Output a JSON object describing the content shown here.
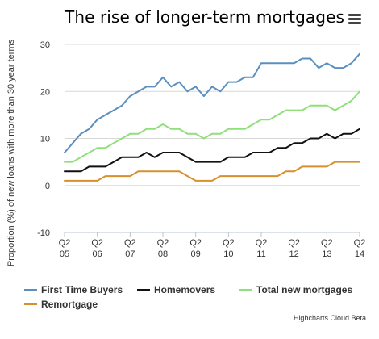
{
  "title": "The rise of longer-term mortgages",
  "menu_icon": "hamburger-menu-icon",
  "credits": "Highcharts Cloud Beta",
  "chart_data": {
    "type": "line",
    "title": "The rise of longer-term mortgages",
    "xlabel": "",
    "ylabel": "Proportion (%) of new loans with more than 30 year terms",
    "ylim": [
      -10,
      30
    ],
    "yticks": [
      -10,
      0,
      10,
      20,
      30
    ],
    "grid": true,
    "legend": "bottom",
    "x": [
      "05Q2",
      "05Q3",
      "05Q4",
      "06Q1",
      "06Q2",
      "06Q3",
      "06Q4",
      "07Q1",
      "07Q2",
      "07Q3",
      "07Q4",
      "08Q1",
      "08Q2",
      "08Q3",
      "08Q4",
      "09Q1",
      "09Q2",
      "09Q3",
      "09Q4",
      "10Q1",
      "10Q2",
      "10Q3",
      "10Q4",
      "11Q1",
      "11Q2",
      "11Q3",
      "11Q4",
      "12Q1",
      "12Q2",
      "12Q3",
      "12Q4",
      "13Q1",
      "13Q2",
      "13Q3",
      "13Q4",
      "14Q1",
      "14Q2"
    ],
    "xtick_labels": [
      {
        "index": 0,
        "q": "Q2",
        "yr": "05"
      },
      {
        "index": 4,
        "q": "Q2",
        "yr": "06"
      },
      {
        "index": 8,
        "q": "Q2",
        "yr": "07"
      },
      {
        "index": 12,
        "q": "Q2",
        "yr": "08"
      },
      {
        "index": 16,
        "q": "Q2",
        "yr": "09"
      },
      {
        "index": 20,
        "q": "Q2",
        "yr": "10"
      },
      {
        "index": 24,
        "q": "Q2",
        "yr": "11"
      },
      {
        "index": 28,
        "q": "Q2",
        "yr": "12"
      },
      {
        "index": 32,
        "q": "Q2",
        "yr": "13"
      },
      {
        "index": 36,
        "q": "Q2",
        "yr": "14"
      }
    ],
    "series": [
      {
        "name": "First Time Buyers",
        "color": "#5b8fbf",
        "values": [
          7,
          9,
          11,
          12,
          14,
          15,
          16,
          17,
          19,
          20,
          21,
          21,
          23,
          21,
          22,
          20,
          21,
          19,
          21,
          20,
          22,
          22,
          23,
          23,
          26,
          26,
          26,
          26,
          26,
          27,
          27,
          25,
          26,
          25,
          25,
          26,
          28
        ]
      },
      {
        "name": "Homemovers",
        "color": "#111111",
        "values": [
          3,
          3,
          3,
          4,
          4,
          4,
          5,
          6,
          6,
          6,
          7,
          6,
          7,
          7,
          7,
          6,
          5,
          5,
          5,
          5,
          6,
          6,
          6,
          7,
          7,
          7,
          8,
          8,
          9,
          9,
          10,
          10,
          11,
          10,
          11,
          11,
          12
        ]
      },
      {
        "name": "Total new mortgages",
        "color": "#8fe07a",
        "values": [
          5,
          5,
          6,
          7,
          8,
          8,
          9,
          10,
          11,
          11,
          12,
          12,
          13,
          12,
          12,
          11,
          11,
          10,
          11,
          11,
          12,
          12,
          12,
          13,
          14,
          14,
          15,
          16,
          16,
          16,
          17,
          17,
          17,
          16,
          17,
          18,
          20
        ]
      },
      {
        "name": "Remortgage",
        "color": "#d88f2e",
        "values": [
          1,
          1,
          1,
          1,
          1,
          2,
          2,
          2,
          2,
          3,
          3,
          3,
          3,
          3,
          3,
          2,
          1,
          1,
          1,
          2,
          2,
          2,
          2,
          2,
          2,
          2,
          2,
          3,
          3,
          4,
          4,
          4,
          4,
          5,
          5,
          5,
          5
        ]
      }
    ]
  }
}
